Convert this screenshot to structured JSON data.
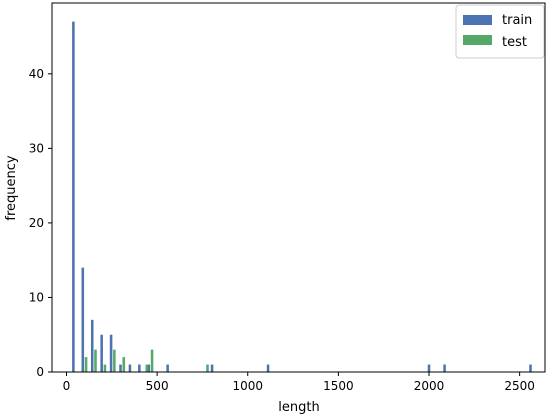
{
  "chart_data": {
    "type": "bar",
    "xlabel": "length",
    "ylabel": "frequency",
    "xlim": [
      -80,
      2640
    ],
    "ylim": [
      0,
      49.5
    ],
    "x_ticks": [
      0,
      500,
      1000,
      1500,
      2000,
      2500
    ],
    "y_ticks": [
      0,
      10,
      20,
      30,
      40
    ],
    "grid": false,
    "legend_position": "top-right",
    "bar_width": 14,
    "series": [
      {
        "name": "train",
        "color": "#4c72b0",
        "bins": [
          {
            "x": 38,
            "value": 47
          },
          {
            "x": 90,
            "value": 14
          },
          {
            "x": 142,
            "value": 7
          },
          {
            "x": 194,
            "value": 5
          },
          {
            "x": 246,
            "value": 5
          },
          {
            "x": 298,
            "value": 1
          },
          {
            "x": 350,
            "value": 1
          },
          {
            "x": 402,
            "value": 1
          },
          {
            "x": 454,
            "value": 1
          },
          {
            "x": 558,
            "value": 1
          },
          {
            "x": 803,
            "value": 1
          },
          {
            "x": 1112,
            "value": 1
          },
          {
            "x": 2000,
            "value": 1
          },
          {
            "x": 2086,
            "value": 1
          },
          {
            "x": 2560,
            "value": 1
          }
        ]
      },
      {
        "name": "test",
        "color": "#55a868",
        "bins": [
          {
            "x": 108,
            "value": 2
          },
          {
            "x": 160,
            "value": 3
          },
          {
            "x": 212,
            "value": 1
          },
          {
            "x": 264,
            "value": 3
          },
          {
            "x": 316,
            "value": 2
          },
          {
            "x": 443,
            "value": 1
          },
          {
            "x": 472,
            "value": 3
          },
          {
            "x": 778,
            "value": 1
          }
        ]
      }
    ]
  }
}
